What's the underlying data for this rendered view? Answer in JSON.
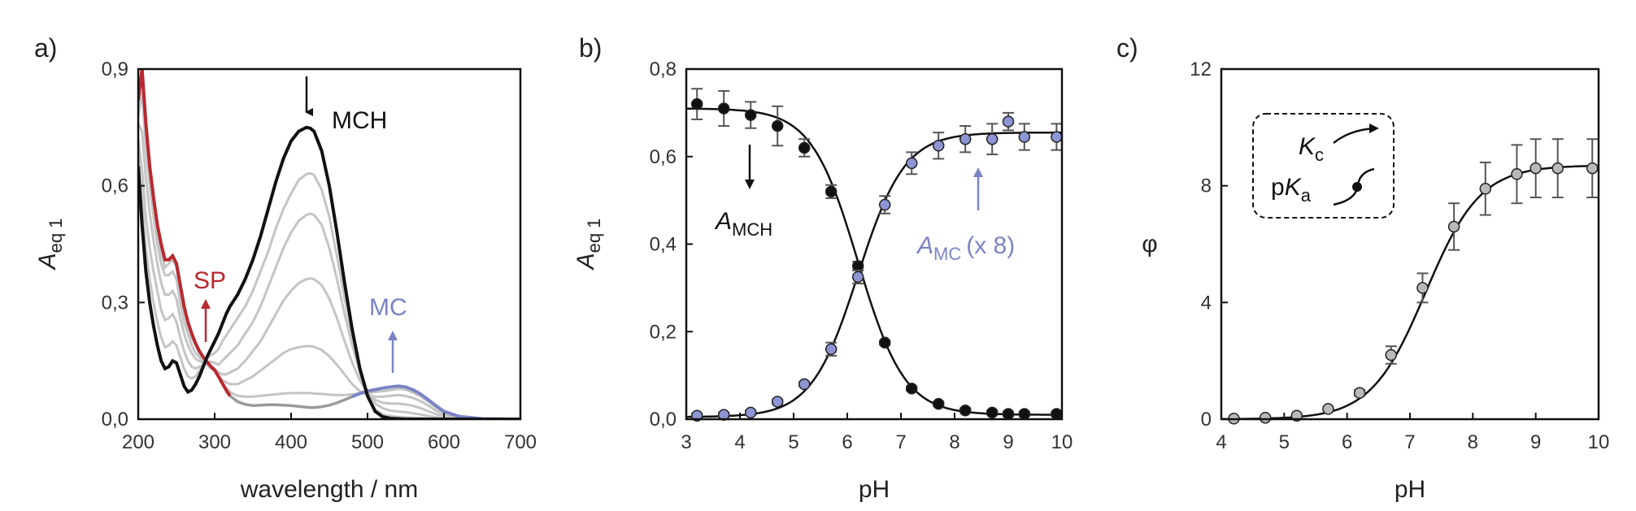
{
  "chart_data": [
    {
      "panel_label": "a)",
      "type": "line",
      "xlabel": "wavelength / nm",
      "ylabel_main": "A",
      "ylabel_sub": "eq 1",
      "xlim": [
        200,
        700
      ],
      "ylim": [
        0,
        0.9
      ],
      "xticks": [
        "200",
        "300",
        "400",
        "500",
        "600",
        "700"
      ],
      "yticks": [
        "0,0",
        "0,3",
        "0,6",
        "0,9"
      ],
      "colors": {
        "mch": "#111111",
        "sp": "#b8292f",
        "mc": "#7b83c6",
        "intermediate": "#c4c4c4"
      },
      "annotations": {
        "mch": "MCH",
        "sp": "SP",
        "mc": "MC"
      },
      "series": [
        {
          "x": [
            200,
            205,
            210,
            215,
            220,
            225,
            230,
            235,
            240,
            245,
            250,
            255,
            260,
            265,
            270,
            275,
            280,
            285,
            290,
            295,
            300,
            305,
            310,
            315,
            320,
            330,
            340,
            350,
            360,
            370,
            380,
            390,
            400,
            410,
            420,
            425,
            430,
            440,
            450,
            460,
            470,
            480,
            490,
            500,
            510,
            520,
            530,
            540,
            550,
            560,
            570,
            580,
            590,
            600,
            620,
            650,
            700
          ],
          "y": [
            0.65,
            0.5,
            0.38,
            0.3,
            0.24,
            0.19,
            0.15,
            0.13,
            0.135,
            0.15,
            0.145,
            0.115,
            0.085,
            0.07,
            0.075,
            0.09,
            0.11,
            0.135,
            0.16,
            0.18,
            0.2,
            0.22,
            0.245,
            0.27,
            0.29,
            0.32,
            0.36,
            0.41,
            0.47,
            0.54,
            0.61,
            0.67,
            0.715,
            0.74,
            0.75,
            0.748,
            0.74,
            0.69,
            0.6,
            0.48,
            0.35,
            0.23,
            0.13,
            0.06,
            0.02,
            0.006,
            0.002,
            0.001,
            0,
            0,
            0,
            0,
            0,
            0,
            0,
            0,
            0
          ]
        },
        {
          "x": [
            200,
            205,
            210,
            215,
            220,
            225,
            230,
            235,
            240,
            245,
            250,
            255,
            260,
            265,
            270,
            275,
            280,
            285,
            290,
            295,
            300,
            305,
            310,
            315,
            320,
            330,
            340,
            350,
            360,
            370,
            380,
            390,
            400,
            410,
            420,
            425,
            430,
            440,
            450,
            460,
            470,
            480,
            490,
            500,
            510,
            520,
            530,
            540,
            550,
            560,
            570,
            580,
            590,
            600,
            620,
            650,
            700
          ],
          "y": [
            0.68,
            0.56,
            0.44,
            0.36,
            0.3,
            0.25,
            0.21,
            0.185,
            0.19,
            0.2,
            0.19,
            0.16,
            0.13,
            0.11,
            0.105,
            0.11,
            0.125,
            0.14,
            0.155,
            0.165,
            0.17,
            0.18,
            0.2,
            0.215,
            0.23,
            0.26,
            0.29,
            0.33,
            0.38,
            0.43,
            0.49,
            0.54,
            0.58,
            0.615,
            0.63,
            0.632,
            0.628,
            0.59,
            0.52,
            0.42,
            0.31,
            0.21,
            0.12,
            0.06,
            0.025,
            0.012,
            0.008,
            0.006,
            0.005,
            0.004,
            0.003,
            0.002,
            0.001,
            0,
            0,
            0,
            0
          ]
        },
        {
          "x": [
            200,
            205,
            210,
            215,
            220,
            225,
            230,
            235,
            240,
            245,
            250,
            255,
            260,
            265,
            270,
            275,
            280,
            285,
            290,
            295,
            300,
            305,
            310,
            315,
            320,
            330,
            340,
            350,
            360,
            370,
            380,
            390,
            400,
            410,
            420,
            425,
            430,
            440,
            450,
            460,
            470,
            480,
            490,
            500,
            510,
            520,
            530,
            540,
            550,
            560,
            570,
            580,
            590,
            600,
            620,
            650,
            700
          ],
          "y": [
            0.72,
            0.64,
            0.52,
            0.44,
            0.38,
            0.33,
            0.28,
            0.255,
            0.26,
            0.27,
            0.25,
            0.21,
            0.175,
            0.15,
            0.135,
            0.13,
            0.135,
            0.14,
            0.145,
            0.148,
            0.145,
            0.14,
            0.15,
            0.16,
            0.17,
            0.19,
            0.22,
            0.25,
            0.29,
            0.34,
            0.39,
            0.44,
            0.48,
            0.51,
            0.525,
            0.528,
            0.525,
            0.5,
            0.44,
            0.36,
            0.27,
            0.19,
            0.12,
            0.07,
            0.04,
            0.028,
            0.022,
            0.02,
            0.018,
            0.015,
            0.012,
            0.008,
            0.005,
            0.003,
            0.001,
            0,
            0
          ]
        },
        {
          "x": [
            200,
            205,
            210,
            215,
            220,
            225,
            230,
            235,
            240,
            245,
            250,
            255,
            260,
            265,
            270,
            275,
            280,
            285,
            290,
            295,
            300,
            305,
            310,
            315,
            320,
            330,
            340,
            350,
            360,
            370,
            380,
            390,
            400,
            410,
            420,
            425,
            430,
            440,
            450,
            460,
            470,
            480,
            490,
            500,
            510,
            520,
            530,
            540,
            550,
            560,
            570,
            580,
            590,
            600,
            620,
            650,
            700
          ],
          "y": [
            0.76,
            0.74,
            0.62,
            0.53,
            0.46,
            0.4,
            0.35,
            0.32,
            0.32,
            0.33,
            0.31,
            0.26,
            0.22,
            0.19,
            0.17,
            0.155,
            0.15,
            0.145,
            0.14,
            0.135,
            0.13,
            0.12,
            0.115,
            0.115,
            0.12,
            0.13,
            0.15,
            0.175,
            0.2,
            0.235,
            0.27,
            0.305,
            0.33,
            0.35,
            0.36,
            0.362,
            0.36,
            0.345,
            0.31,
            0.26,
            0.2,
            0.145,
            0.1,
            0.068,
            0.05,
            0.042,
            0.04,
            0.04,
            0.038,
            0.034,
            0.028,
            0.02,
            0.013,
            0.008,
            0.002,
            0,
            0
          ]
        },
        {
          "x": [
            200,
            205,
            210,
            215,
            220,
            225,
            230,
            235,
            240,
            245,
            250,
            255,
            260,
            265,
            270,
            275,
            280,
            285,
            290,
            295,
            300,
            305,
            310,
            315,
            320,
            330,
            340,
            350,
            360,
            370,
            380,
            390,
            400,
            410,
            420,
            425,
            430,
            440,
            450,
            460,
            470,
            480,
            490,
            500,
            510,
            520,
            530,
            540,
            550,
            560,
            570,
            580,
            590,
            600,
            620,
            650,
            700
          ],
          "y": [
            0.78,
            0.84,
            0.7,
            0.6,
            0.52,
            0.45,
            0.4,
            0.37,
            0.37,
            0.38,
            0.36,
            0.3,
            0.25,
            0.22,
            0.19,
            0.17,
            0.16,
            0.15,
            0.14,
            0.13,
            0.125,
            0.11,
            0.1,
            0.095,
            0.09,
            0.09,
            0.1,
            0.11,
            0.125,
            0.14,
            0.155,
            0.17,
            0.18,
            0.185,
            0.188,
            0.188,
            0.186,
            0.178,
            0.162,
            0.14,
            0.115,
            0.09,
            0.072,
            0.062,
            0.058,
            0.058,
            0.06,
            0.062,
            0.06,
            0.054,
            0.046,
            0.034,
            0.022,
            0.013,
            0.004,
            0.001,
            0
          ]
        },
        {
          "x": [
            200,
            205,
            210,
            215,
            220,
            225,
            230,
            235,
            240,
            245,
            250,
            255,
            260,
            265,
            270,
            275,
            280,
            285,
            290,
            295,
            300,
            305,
            310,
            315,
            320,
            330,
            340,
            350,
            360,
            370,
            380,
            390,
            400,
            410,
            420,
            425,
            430,
            440,
            450,
            460,
            470,
            480,
            490,
            500,
            510,
            520,
            530,
            540,
            550,
            560,
            570,
            580,
            590,
            600,
            620,
            650,
            700
          ],
          "y": [
            0.8,
            0.88,
            0.74,
            0.63,
            0.55,
            0.48,
            0.43,
            0.39,
            0.4,
            0.41,
            0.39,
            0.33,
            0.28,
            0.24,
            0.21,
            0.19,
            0.17,
            0.16,
            0.145,
            0.135,
            0.125,
            0.11,
            0.095,
            0.08,
            0.07,
            0.06,
            0.058,
            0.058,
            0.06,
            0.062,
            0.064,
            0.066,
            0.067,
            0.067,
            0.067,
            0.067,
            0.066,
            0.065,
            0.063,
            0.062,
            0.062,
            0.064,
            0.066,
            0.068,
            0.07,
            0.072,
            0.075,
            0.078,
            0.076,
            0.068,
            0.058,
            0.044,
            0.03,
            0.018,
            0.006,
            0.001,
            0
          ]
        },
        {
          "x": [
            200,
            205,
            210,
            215,
            220,
            225,
            230,
            235,
            240,
            245,
            250,
            255,
            260,
            265,
            270,
            275,
            280,
            285,
            290,
            295,
            300,
            305,
            310,
            315,
            320,
            330,
            340,
            350,
            360,
            370,
            380,
            390,
            400,
            410,
            420,
            425,
            430,
            440,
            450,
            460,
            470,
            480,
            490,
            500,
            510,
            520,
            530,
            540,
            550,
            560,
            570,
            580,
            590,
            600,
            620,
            650,
            700
          ],
          "y": [
            0.82,
            0.9,
            0.76,
            0.65,
            0.57,
            0.5,
            0.45,
            0.41,
            0.41,
            0.42,
            0.4,
            0.345,
            0.29,
            0.25,
            0.22,
            0.195,
            0.175,
            0.16,
            0.148,
            0.136,
            0.126,
            0.11,
            0.092,
            0.075,
            0.06,
            0.045,
            0.038,
            0.035,
            0.036,
            0.037,
            0.037,
            0.036,
            0.035,
            0.033,
            0.031,
            0.03,
            0.03,
            0.032,
            0.036,
            0.042,
            0.05,
            0.058,
            0.066,
            0.072,
            0.076,
            0.08,
            0.083,
            0.085,
            0.083,
            0.075,
            0.064,
            0.049,
            0.034,
            0.02,
            0.007,
            0.001,
            0
          ]
        }
      ]
    },
    {
      "panel_label": "b)",
      "type": "scatter",
      "xlabel": "pH",
      "ylabel_main": "A",
      "ylabel_sub": "eq 1",
      "xlim": [
        3,
        10
      ],
      "ylim": [
        0,
        0.8
      ],
      "xticks": [
        "3",
        "4",
        "5",
        "6",
        "7",
        "8",
        "9",
        "10"
      ],
      "yticks": [
        "0,0",
        "0,2",
        "0,4",
        "0,6",
        "0,8"
      ],
      "annotations": {
        "mch_main": "A",
        "mch_sub": "MCH",
        "mc_main": "A",
        "mc_sub": "MC",
        "mc_suffix": "(x 8)"
      },
      "series": [
        {
          "key": "mch",
          "color": "#111111",
          "x": [
            3.2,
            3.7,
            4.2,
            4.7,
            5.2,
            5.7,
            6.2,
            6.7,
            7.2,
            7.7,
            8.2,
            8.7,
            9.0,
            9.3,
            9.9
          ],
          "y": [
            0.72,
            0.71,
            0.695,
            0.67,
            0.62,
            0.52,
            0.35,
            0.175,
            0.07,
            0.035,
            0.02,
            0.015,
            0.012,
            0.012,
            0.012
          ],
          "err": [
            0.035,
            0.04,
            0.03,
            0.045,
            0.02,
            0.015,
            0.01,
            0.005,
            0.005,
            0.005,
            0.005,
            0.005,
            0.005,
            0.005,
            0.005
          ],
          "fit_pka": 6.2,
          "fit_top": 0.71,
          "fit_bottom": 0.01
        },
        {
          "key": "mc",
          "color": "#8d95d3",
          "x": [
            3.2,
            3.7,
            4.2,
            4.7,
            5.2,
            5.7,
            6.2,
            6.7,
            7.2,
            7.7,
            8.2,
            8.7,
            9.0,
            9.3,
            9.9
          ],
          "y": [
            0.008,
            0.01,
            0.015,
            0.04,
            0.08,
            0.16,
            0.325,
            0.49,
            0.585,
            0.625,
            0.64,
            0.64,
            0.68,
            0.645,
            0.645
          ],
          "err": [
            0.005,
            0.005,
            0.005,
            0.005,
            0.005,
            0.015,
            0.015,
            0.02,
            0.025,
            0.03,
            0.03,
            0.035,
            0.02,
            0.03,
            0.03
          ],
          "fit_pka": 6.2,
          "fit_top": 0.655,
          "fit_bottom": 0.005
        }
      ]
    },
    {
      "panel_label": "c)",
      "type": "scatter",
      "xlabel": "pH",
      "ylabel": "φ",
      "xlim": [
        4,
        10
      ],
      "ylim": [
        0,
        12
      ],
      "xticks": [
        "4",
        "5",
        "6",
        "7",
        "8",
        "9",
        "10"
      ],
      "yticks": [
        "0",
        "4",
        "8",
        "12"
      ],
      "legend": {
        "kc_main": "K",
        "kc_sub": "c",
        "pka_pre": "p",
        "pka_main": "K",
        "pka_sub": "a"
      },
      "series": [
        {
          "key": "phi",
          "color": "#b9b9b9",
          "x": [
            4.2,
            4.7,
            5.2,
            5.7,
            6.2,
            6.7,
            7.2,
            7.7,
            8.2,
            8.7,
            9.0,
            9.35,
            9.9
          ],
          "y": [
            0.02,
            0.05,
            0.12,
            0.35,
            0.9,
            2.2,
            4.5,
            6.6,
            7.9,
            8.4,
            8.6,
            8.6,
            8.6
          ],
          "err": [
            0,
            0,
            0,
            0,
            0.1,
            0.3,
            0.5,
            0.8,
            0.9,
            1.0,
            1.0,
            1.0,
            1.0
          ],
          "fit_pka": 7.25,
          "fit_top": 8.7,
          "fit_bottom": 0.0
        }
      ]
    }
  ]
}
